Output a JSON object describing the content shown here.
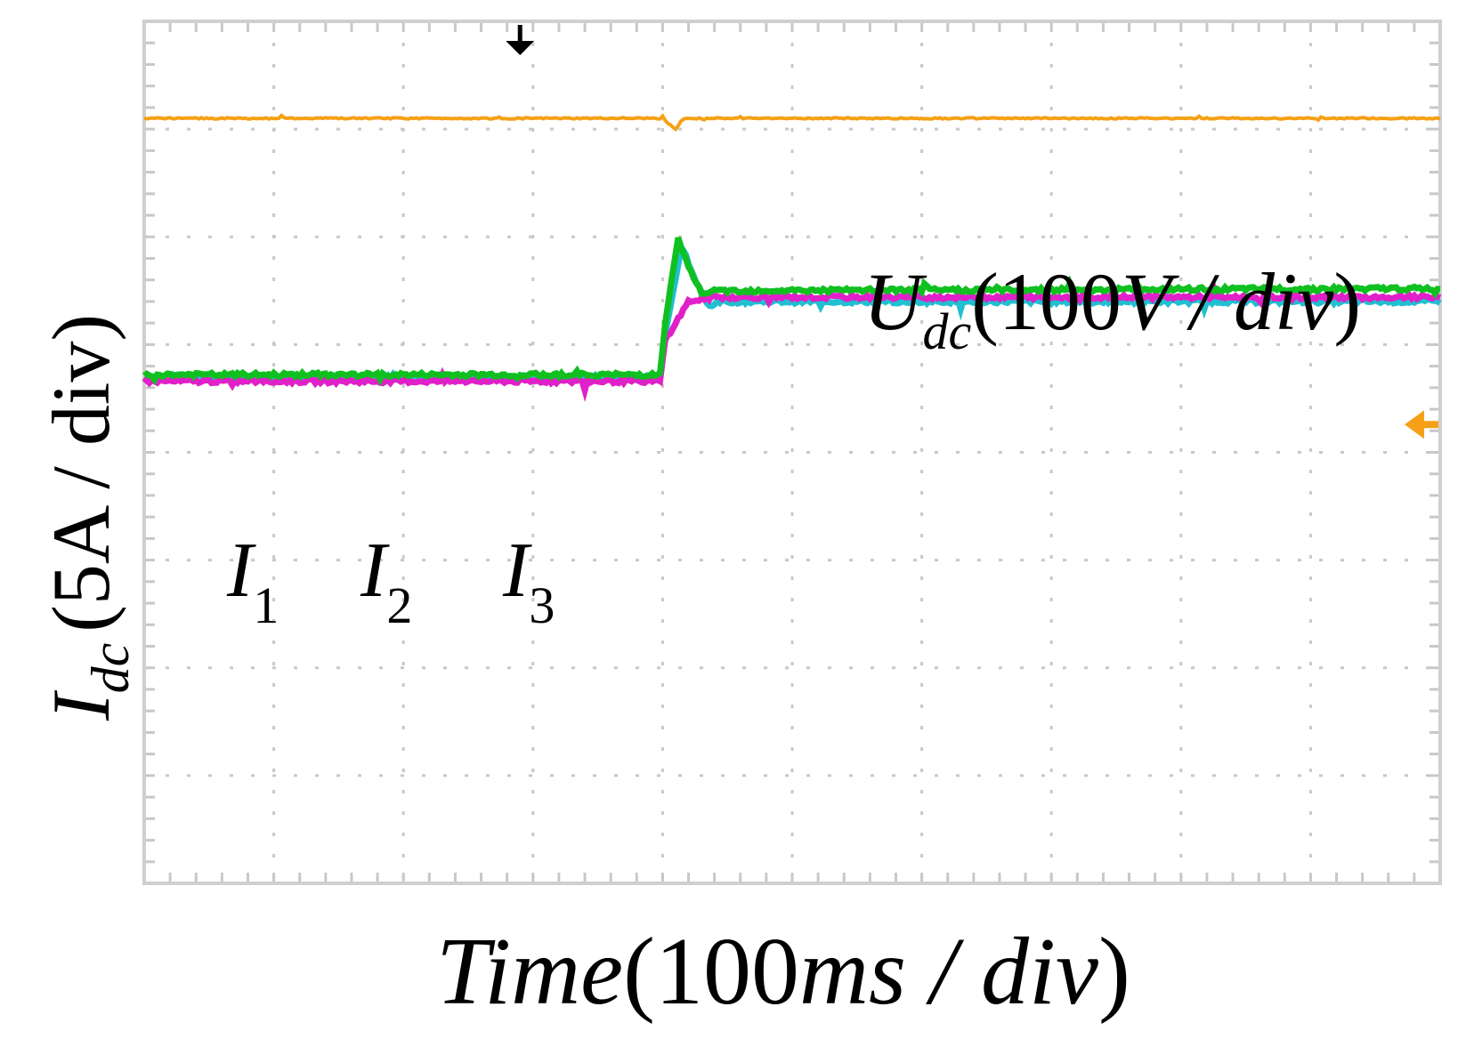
{
  "colors": {
    "frame": "#cfcfcf",
    "grid": "#c8c8c8",
    "I1": "#e020c8",
    "I2": "#20c0d0",
    "I3": "#10c020",
    "Udc": "#f5a016",
    "trigger": "#000000",
    "ground_marker": "#f5a016"
  },
  "labels": {
    "ylabel": {
      "main": "I",
      "sub": "dc",
      "rest": "(5A / div)"
    },
    "udc": {
      "main": "U",
      "sub": "dc",
      "rest_upright_1": "(100",
      "rest_italic": "V / div",
      "rest_upright_2": ")"
    },
    "xlabel": {
      "italic": "Time",
      "upright_1": "(100",
      "italic_2": "ms / div",
      "upright_2": ")"
    },
    "traces": [
      {
        "main": "I",
        "sub": "1"
      },
      {
        "main": "I",
        "sub": "2"
      },
      {
        "main": "I",
        "sub": "3"
      }
    ]
  },
  "chart_data": {
    "type": "line",
    "xlabel": "Time(100ms / div)",
    "ylabel": "Idc(5A / div)",
    "divisions": {
      "x": 10,
      "y": 8
    },
    "xlim": [
      0,
      1000
    ],
    "x_unit": "ms",
    "ylim_div": [
      -4,
      4
    ],
    "grid": true,
    "ground_marker": "right edge, at Idc trace reference level",
    "trigger_marker": "top, at x = 290 ms",
    "series": [
      {
        "name": "I1",
        "color": "#e020c8",
        "unit": "A",
        "points": [
          [
            0,
            3.3
          ],
          [
            398,
            3.3
          ],
          [
            402,
            5.2
          ],
          [
            420,
            7.0
          ],
          [
            440,
            7.2
          ],
          [
            1000,
            7.2
          ]
        ]
      },
      {
        "name": "I2",
        "color": "#20c0d0",
        "unit": "A",
        "points": [
          [
            0,
            3.5
          ],
          [
            398,
            3.5
          ],
          [
            402,
            5.5
          ],
          [
            415,
            9.6
          ],
          [
            425,
            8.0
          ],
          [
            435,
            6.8
          ],
          [
            445,
            7.0
          ],
          [
            1000,
            7.0
          ]
        ]
      },
      {
        "name": "I3",
        "color": "#10c020",
        "unit": "A",
        "points": [
          [
            0,
            3.6
          ],
          [
            398,
            3.6
          ],
          [
            402,
            6.0
          ],
          [
            412,
            9.9
          ],
          [
            420,
            8.6
          ],
          [
            430,
            7.4
          ],
          [
            445,
            7.5
          ],
          [
            1000,
            7.6
          ]
        ]
      },
      {
        "name": "Udc",
        "color": "#f5a016",
        "unit": "V",
        "points": [
          [
            0,
            420
          ],
          [
            400,
            420
          ],
          [
            405,
            415
          ],
          [
            410,
            410
          ],
          [
            415,
            419
          ],
          [
            420,
            420
          ],
          [
            1000,
            420
          ]
        ]
      }
    ]
  }
}
